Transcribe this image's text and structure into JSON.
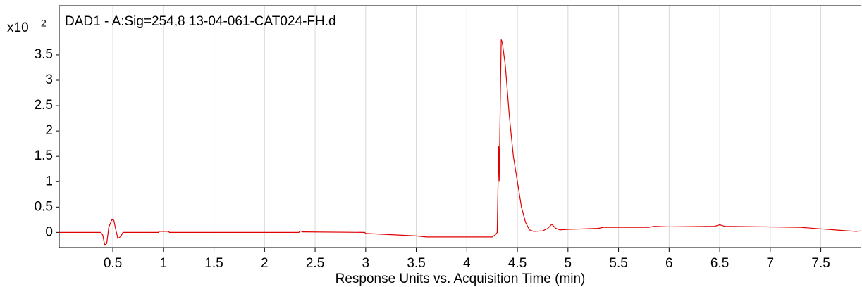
{
  "chart_data": {
    "type": "line",
    "title": "DAD1 - A:Sig=254,8 13-04-061-CAT024-FH.d",
    "y_scale_label": "x10",
    "y_scale_exponent": "2",
    "x_label": "Response Units vs. Acquisition Time (min)",
    "xlim": [
      -0.03,
      7.9
    ],
    "xticks": [
      0.5,
      1,
      1.5,
      2,
      2.5,
      3,
      3.5,
      4,
      4.5,
      5,
      5.5,
      6,
      6.5,
      7,
      7.5
    ],
    "ylim": [
      -0.3,
      4.47
    ],
    "yticks": [
      0,
      0.5,
      1,
      1.5,
      2,
      2.5,
      3,
      3.5
    ],
    "grid": true,
    "series": [
      {
        "color": "#e00000",
        "x": [
          -0.03,
          0.38,
          0.4,
          0.42,
          0.44,
          0.46,
          0.49,
          0.51,
          0.53,
          0.55,
          0.58,
          0.6,
          0.95,
          0.96,
          1.05,
          1.06,
          2.34,
          2.35,
          2.38,
          2.99,
          3.0,
          3.2,
          3.5,
          3.6,
          4.25,
          4.28,
          4.3,
          4.31,
          4.315,
          4.32,
          4.33,
          4.34,
          4.35,
          4.38,
          4.42,
          4.46,
          4.5,
          4.54,
          4.58,
          4.62,
          4.66,
          4.75,
          4.8,
          4.84,
          4.88,
          4.92,
          5.0,
          5.3,
          5.35,
          5.8,
          5.85,
          6.0,
          6.45,
          6.5,
          6.55,
          7.3,
          7.5,
          7.7,
          7.85,
          7.9
        ],
        "values": [
          0,
          0,
          -0.05,
          -0.25,
          -0.22,
          0.1,
          0.25,
          0.24,
          0.05,
          -0.12,
          -0.08,
          0,
          0,
          0.02,
          0.02,
          0,
          0,
          0.03,
          0.01,
          0,
          -0.02,
          -0.04,
          -0.07,
          -0.09,
          -0.09,
          -0.05,
          0,
          1.1,
          1.7,
          1.0,
          2.5,
          3.8,
          3.75,
          3.3,
          2.3,
          1.5,
          1.0,
          0.5,
          0.2,
          0.05,
          0.02,
          0.03,
          0.08,
          0.16,
          0.08,
          0.05,
          0.06,
          0.08,
          0.1,
          0.1,
          0.12,
          0.11,
          0.12,
          0.15,
          0.12,
          0.1,
          0.07,
          0.04,
          0.02,
          0.03
        ]
      }
    ]
  }
}
